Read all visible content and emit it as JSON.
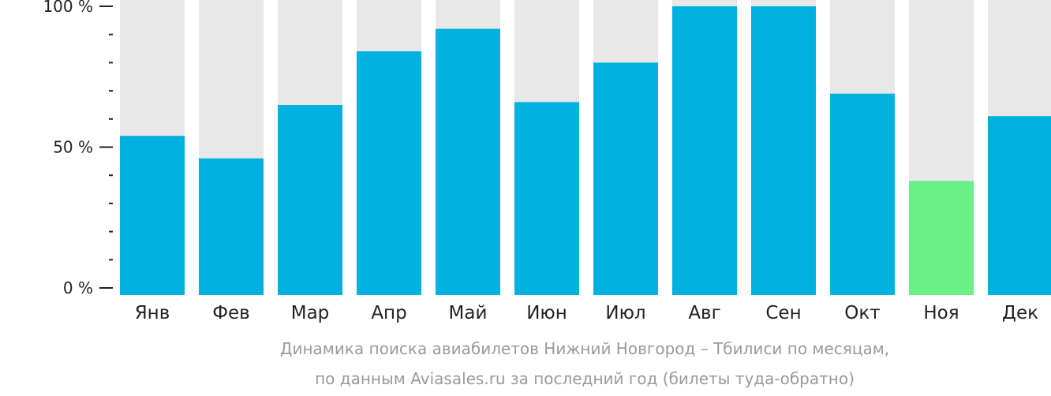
{
  "chart_data": {
    "type": "bar",
    "categories": [
      "Янв",
      "Фев",
      "Мар",
      "Апр",
      "Май",
      "Июн",
      "Июл",
      "Авг",
      "Сен",
      "Окт",
      "Ноя",
      "Дек"
    ],
    "values": [
      54,
      46,
      65,
      84,
      92,
      66,
      80,
      100,
      100,
      69,
      38,
      61
    ],
    "highlight_index": 10,
    "ylim": [
      0,
      100
    ],
    "yticks": [
      "0 %",
      "50 %",
      "100 %"
    ],
    "minor_ticks_per_interval": 5,
    "title": "",
    "xlabel": "",
    "ylabel": "",
    "grid": false,
    "legend": "none",
    "colors": {
      "bar": "#00b0de",
      "highlight": "#6bef87",
      "background_bar": "#e8e8e8",
      "axis": "#222222",
      "caption": "#9a9a9a"
    }
  },
  "caption": {
    "line1": "Динамика поиска авиабилетов Нижний Новгород – Тбилиси по месяцам,",
    "line2": "по данным Aviasales.ru за последний год (билеты туда-обратно)"
  }
}
